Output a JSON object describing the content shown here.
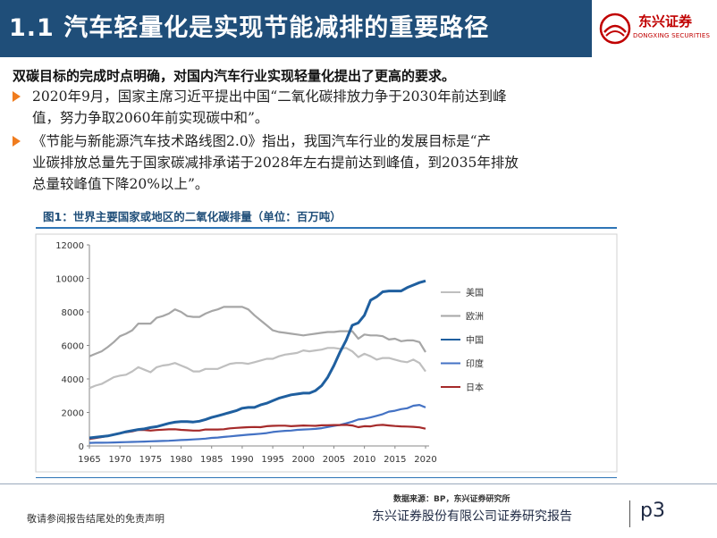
{
  "header": {
    "title": "1.1 汽车轻量化是实现节能减排的重要路径",
    "logo_text": "东兴证券",
    "logo_sub": "DONGXING SECURITIES"
  },
  "intro": "双碳目标的完成时点明确，对国内汽车行业实现轻量化提出了更高的要求。",
  "bullets": [
    {
      "lines": [
        "2020年9月，国家主席习近平提出中国“二氧化碳排放力争于2030年前达到峰",
        "值，努力争取2060年前实现碳中和”。"
      ]
    },
    {
      "lines": [
        "《节能与新能源汽车技术路线图2.0》指出，我国汽车行业的发展目标是“产",
        "业碳排放总量先于国家碳减排承诺于2028年左右提前达到峰值，到2035年排放",
        "总量较峰值下降20%以上”。"
      ]
    }
  ],
  "figure": {
    "title": "图1：世界主要国家或地区的二氧化碳排量（单位：百万吨）",
    "source": "数据来源：BP，东兴证券研究所"
  },
  "footer": {
    "disclaimer": "敬请参阅报告结尾处的免责声明",
    "company": "东兴证券股份有限公司证券研究报告",
    "page": "p3"
  },
  "chart_data": {
    "type": "line",
    "title": "",
    "xlabel": "",
    "ylabel": "",
    "xlim": [
      1965,
      2020
    ],
    "ylim": [
      0,
      12000
    ],
    "yticks": [
      0,
      2000,
      4000,
      6000,
      8000,
      10000,
      12000
    ],
    "xticks": [
      1965,
      1970,
      1975,
      1980,
      1985,
      1990,
      1995,
      2000,
      2005,
      2010,
      2015,
      2020
    ],
    "legend_position": "right",
    "grid": false,
    "x": [
      1965,
      1966,
      1967,
      1968,
      1969,
      1970,
      1971,
      1972,
      1973,
      1974,
      1975,
      1976,
      1977,
      1978,
      1979,
      1980,
      1981,
      1982,
      1983,
      1984,
      1985,
      1986,
      1987,
      1988,
      1989,
      1990,
      1991,
      1992,
      1993,
      1994,
      1995,
      1996,
      1997,
      1998,
      1999,
      2000,
      2001,
      2002,
      2003,
      2004,
      2005,
      2006,
      2007,
      2008,
      2009,
      2010,
      2011,
      2012,
      2013,
      2014,
      2015,
      2016,
      2017,
      2018,
      2019,
      2020
    ],
    "series": [
      {
        "name": "美国",
        "color": "#bfbfbf",
        "values": [
          3450,
          3600,
          3700,
          3900,
          4100,
          4200,
          4250,
          4450,
          4700,
          4550,
          4400,
          4700,
          4800,
          4850,
          4950,
          4800,
          4650,
          4450,
          4450,
          4600,
          4600,
          4600,
          4750,
          4900,
          4950,
          4950,
          4900,
          5000,
          5100,
          5200,
          5200,
          5350,
          5450,
          5500,
          5550,
          5700,
          5650,
          5700,
          5750,
          5850,
          5850,
          5800,
          5850,
          5650,
          5300,
          5500,
          5350,
          5150,
          5250,
          5250,
          5150,
          5050,
          5000,
          5150,
          4950,
          4450
        ]
      },
      {
        "name": "欧洲",
        "color": "#a6a6a6",
        "values": [
          5350,
          5500,
          5650,
          5900,
          6200,
          6550,
          6700,
          6900,
          7300,
          7300,
          7300,
          7650,
          7750,
          7900,
          8150,
          8000,
          7750,
          7700,
          7700,
          7900,
          8050,
          8150,
          8300,
          8300,
          8300,
          8300,
          8150,
          7800,
          7500,
          7200,
          6900,
          6800,
          6750,
          6700,
          6650,
          6600,
          6650,
          6700,
          6750,
          6800,
          6800,
          6850,
          6850,
          6850,
          6400,
          6650,
          6600,
          6600,
          6550,
          6350,
          6400,
          6250,
          6300,
          6300,
          6200,
          5600
        ]
      },
      {
        "name": "中国",
        "color": "#1f5f9f",
        "values": [
          480,
          520,
          560,
          600,
          680,
          760,
          850,
          920,
          980,
          1020,
          1100,
          1150,
          1250,
          1350,
          1420,
          1450,
          1450,
          1430,
          1480,
          1580,
          1700,
          1800,
          1900,
          2000,
          2100,
          2250,
          2300,
          2300,
          2450,
          2550,
          2700,
          2850,
          2950,
          3050,
          3100,
          3150,
          3150,
          3300,
          3600,
          4100,
          4800,
          5600,
          6300,
          7200,
          7350,
          7800,
          8700,
          8900,
          9200,
          9250,
          9250,
          9250,
          9450,
          9600,
          9750,
          9850
        ]
      },
      {
        "name": "印度",
        "color": "#4472c4",
        "values": [
          180,
          190,
          190,
          200,
          210,
          220,
          230,
          240,
          250,
          260,
          280,
          290,
          300,
          310,
          330,
          350,
          370,
          390,
          410,
          440,
          480,
          500,
          540,
          570,
          610,
          640,
          670,
          700,
          730,
          770,
          830,
          870,
          900,
          920,
          960,
          980,
          1000,
          1020,
          1060,
          1130,
          1200,
          1260,
          1350,
          1450,
          1580,
          1620,
          1700,
          1800,
          1900,
          2050,
          2100,
          2200,
          2250,
          2400,
          2450,
          2300
        ]
      },
      {
        "name": "日本",
        "color": "#a52a2a",
        "values": [
          420,
          470,
          530,
          600,
          680,
          760,
          820,
          870,
          960,
          950,
          920,
          950,
          970,
          990,
          1000,
          960,
          940,
          920,
          920,
          980,
          980,
          980,
          1000,
          1050,
          1080,
          1100,
          1120,
          1130,
          1120,
          1180,
          1200,
          1210,
          1210,
          1180,
          1200,
          1220,
          1210,
          1200,
          1230,
          1240,
          1250,
          1250,
          1260,
          1220,
          1120,
          1180,
          1170,
          1240,
          1260,
          1220,
          1190,
          1170,
          1160,
          1140,
          1110,
          1030
        ]
      }
    ]
  }
}
